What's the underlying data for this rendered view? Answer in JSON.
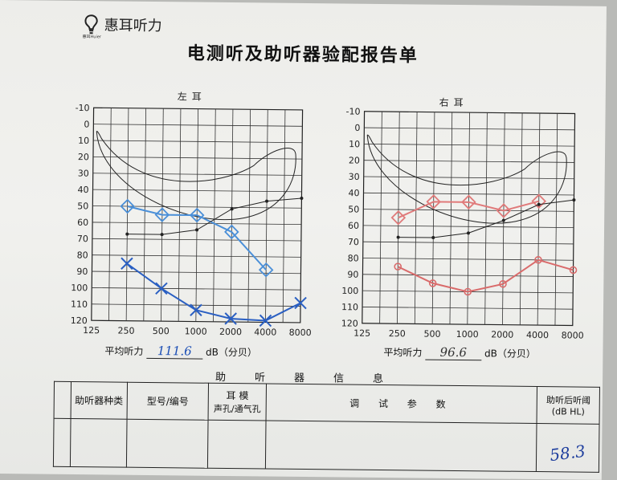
{
  "logo": {
    "name": "惠耳听力",
    "sub": "惠耳Huier"
  },
  "title": "电测听及助听器验配报告单",
  "ears": [
    {
      "title": "左耳",
      "y_ticks": [
        "-10",
        "0",
        "10",
        "20",
        "30",
        "40",
        "50",
        "60",
        "70",
        "80",
        "90",
        "100",
        "110",
        "120"
      ],
      "x_ticks": [
        "125",
        "250",
        "500",
        "1000",
        "2000",
        "4000",
        "8000"
      ],
      "avg_label": "平均听力",
      "avg_value": "111.6",
      "avg_unit": "dB（分贝）"
    },
    {
      "title": "右耳",
      "y_ticks": [
        "-10",
        "0",
        "10",
        "20",
        "30",
        "40",
        "50",
        "60",
        "70",
        "80",
        "90",
        "100",
        "110",
        "120"
      ],
      "x_ticks": [
        "125",
        "250",
        "500",
        "1000",
        "2000",
        "4000",
        "8000"
      ],
      "avg_label": "平均听力",
      "avg_value": "96.6",
      "avg_unit": "dB（分贝）"
    }
  ],
  "chart_data": [
    {
      "type": "line",
      "title": "左耳",
      "x": [
        250,
        500,
        1000,
        2000,
        4000,
        8000
      ],
      "series": [
        {
          "name": "",
          "color": "#4a8fd8",
          "marker": "diamond",
          "values": [
            50,
            55,
            55,
            65,
            88,
            null
          ]
        },
        {
          "name": "",
          "color": "#2a5fc2",
          "marker": "x",
          "values": [
            85,
            100,
            113,
            118,
            119,
            108
          ]
        },
        {
          "name": "",
          "color": "#222222",
          "marker": "dot",
          "values": [
            67,
            67,
            64,
            51,
            46,
            44
          ]
        }
      ]
    },
    {
      "type": "line",
      "title": "右耳",
      "x": [
        250,
        500,
        1000,
        2000,
        4000,
        8000
      ],
      "series": [
        {
          "name": "",
          "color": "#e07a7a",
          "marker": "diamond",
          "values": [
            55,
            45,
            45,
            50,
            44,
            null
          ]
        },
        {
          "name": "",
          "color": "#d96b6b",
          "marker": "o",
          "values": [
            85,
            95,
            100,
            95,
            80,
            86
          ]
        },
        {
          "name": "",
          "color": "#222222",
          "marker": "dot",
          "values": [
            67,
            67,
            64,
            56,
            46,
            43
          ]
        }
      ]
    }
  ],
  "section_title": [
    "助",
    "听",
    "器",
    "信",
    "息"
  ],
  "table": {
    "col1": "助听器种类",
    "col2": "型号/编号",
    "col3a": "耳 模",
    "col3b": "声孔/通气孔",
    "col4": "调 试 参 数",
    "col5a": "助听后听阈",
    "col5b": "(dB HL)"
  },
  "handwritten_threshold": "58.3"
}
